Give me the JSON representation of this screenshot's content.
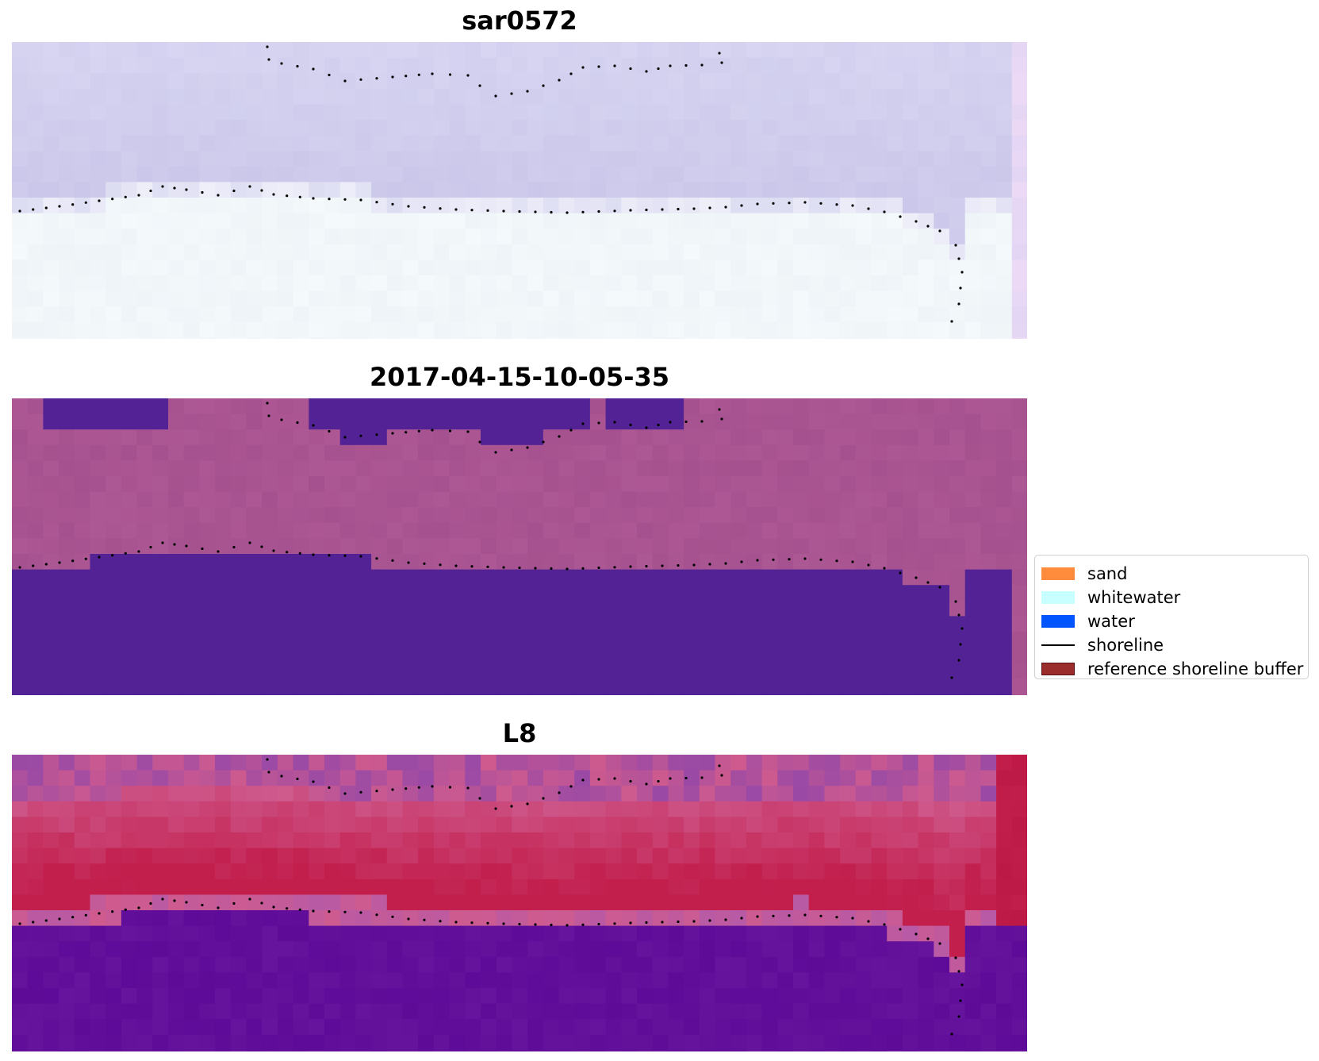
{
  "panels": [
    {
      "title": "sar0572",
      "palette": "rgb-composite"
    },
    {
      "title": "2017-04-15-10-05-35",
      "palette": "classification"
    },
    {
      "title": "L8",
      "palette": "index"
    }
  ],
  "legend": {
    "items": [
      {
        "label": "sand",
        "kind": "patch",
        "color": "#ff8c3c"
      },
      {
        "label": "whitewater",
        "kind": "patch",
        "color": "#c8ffff"
      },
      {
        "label": "water",
        "kind": "patch",
        "color": "#0055ff"
      },
      {
        "label": "shoreline",
        "kind": "line",
        "color": "#000000"
      },
      {
        "label": "reference shoreline buffer",
        "kind": "patch",
        "color": "#9b2c2c",
        "edge": "#5a1010"
      }
    ]
  },
  "colors": {
    "rgb_sky": "#cbc7ea",
    "rgb_land": "#f4f9fb",
    "class_other": "#a5518f",
    "class_water": "#532395",
    "index_high": "#c21f4d",
    "index_mid": "#cf5b8e",
    "index_low": "#5d0b98",
    "shoreline_dots": "#000000"
  }
}
